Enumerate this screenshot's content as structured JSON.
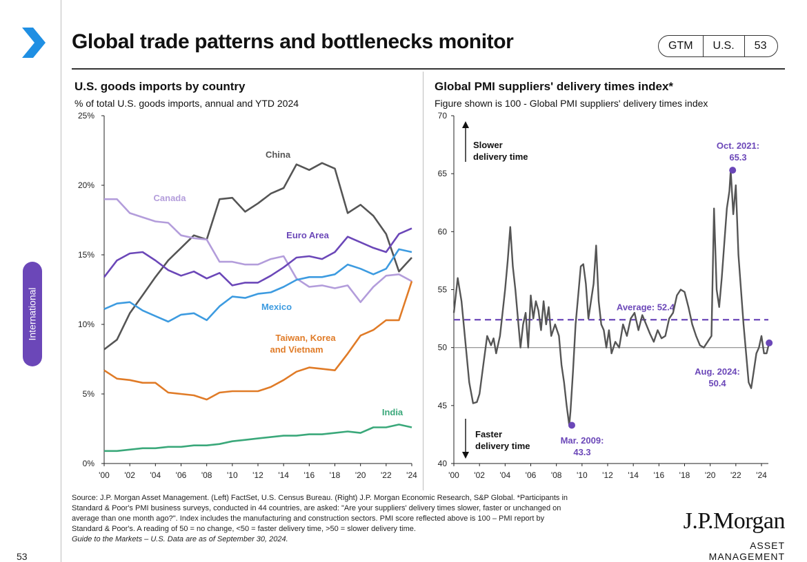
{
  "header": {
    "title": "Global trade patterns and bottlenecks monitor",
    "badges": [
      "GTM",
      "U.S.",
      "53"
    ]
  },
  "side_tab": {
    "label": "International"
  },
  "page_number": "53",
  "colors": {
    "accent": "#1f8fe3",
    "china": "#555555",
    "canada": "#b39ddb",
    "euro_area": "#6b47b8",
    "mexico": "#3d9be0",
    "taiwan_korea_vietnam": "#e07b27",
    "india": "#3aa87a",
    "pmi": "#555555",
    "average": "#6b47b8"
  },
  "chart_data": [
    {
      "type": "line",
      "title": "U.S. goods imports by country",
      "subtitle": "% of total U.S. goods imports, annual and YTD 2024",
      "x": [
        2000,
        2001,
        2002,
        2003,
        2004,
        2005,
        2006,
        2007,
        2008,
        2009,
        2010,
        2011,
        2012,
        2013,
        2014,
        2015,
        2016,
        2017,
        2018,
        2019,
        2020,
        2021,
        2022,
        2023,
        2024
      ],
      "x_ticks": [
        {
          "v": 2000,
          "label": "'00"
        },
        {
          "v": 2002,
          "label": "'02"
        },
        {
          "v": 2004,
          "label": "'04"
        },
        {
          "v": 2006,
          "label": "'06"
        },
        {
          "v": 2008,
          "label": "'08"
        },
        {
          "v": 2010,
          "label": "'10"
        },
        {
          "v": 2012,
          "label": "'12"
        },
        {
          "v": 2014,
          "label": "'14"
        },
        {
          "v": 2016,
          "label": "'16"
        },
        {
          "v": 2018,
          "label": "'18"
        },
        {
          "v": 2020,
          "label": "'20"
        },
        {
          "v": 2022,
          "label": "'22"
        },
        {
          "v": 2024,
          "label": "'24"
        }
      ],
      "y_ticks": [
        {
          "v": 0,
          "label": "0%"
        },
        {
          "v": 5,
          "label": "5%"
        },
        {
          "v": 10,
          "label": "10%"
        },
        {
          "v": 15,
          "label": "15%"
        },
        {
          "v": 20,
          "label": "20%"
        },
        {
          "v": 25,
          "label": "25%"
        }
      ],
      "ylim": [
        0,
        25
      ],
      "grid": false,
      "series": [
        {
          "name": "China",
          "color_key": "china",
          "values": [
            8.2,
            8.9,
            10.8,
            12.1,
            13.4,
            14.6,
            15.5,
            16.4,
            16.1,
            19.0,
            19.1,
            18.1,
            18.7,
            19.4,
            19.8,
            21.5,
            21.1,
            21.6,
            21.2,
            18.0,
            18.6,
            17.8,
            16.5,
            13.8,
            14.8
          ]
        },
        {
          "name": "Canada",
          "color_key": "canada",
          "values": [
            19.0,
            19.0,
            18.0,
            17.7,
            17.4,
            17.3,
            16.4,
            16.2,
            16.1,
            14.5,
            14.5,
            14.3,
            14.3,
            14.7,
            14.9,
            13.3,
            12.7,
            12.8,
            12.6,
            12.8,
            11.6,
            12.7,
            13.5,
            13.6,
            13.1
          ]
        },
        {
          "name": "Euro Area",
          "color_key": "euro_area",
          "values": [
            13.4,
            14.6,
            15.1,
            15.2,
            14.6,
            13.9,
            13.5,
            13.8,
            13.3,
            13.7,
            12.8,
            13.0,
            13.0,
            13.5,
            14.1,
            14.8,
            14.9,
            14.7,
            15.2,
            16.3,
            15.9,
            15.5,
            15.2,
            16.5,
            16.9
          ]
        },
        {
          "name": "Mexico",
          "color_key": "mexico",
          "values": [
            11.1,
            11.5,
            11.6,
            11.0,
            10.6,
            10.2,
            10.7,
            10.8,
            10.3,
            11.3,
            12.0,
            11.9,
            12.2,
            12.3,
            12.7,
            13.2,
            13.4,
            13.4,
            13.6,
            14.3,
            14.0,
            13.6,
            14.0,
            15.4,
            15.2
          ]
        },
        {
          "name": "Taiwan, Korea and Vietnam",
          "color_key": "taiwan_korea_vietnam",
          "values": [
            6.7,
            6.1,
            6.0,
            5.8,
            5.8,
            5.1,
            5.0,
            4.9,
            4.6,
            5.1,
            5.2,
            5.2,
            5.2,
            5.5,
            6.0,
            6.6,
            6.9,
            6.8,
            6.7,
            7.9,
            9.2,
            9.6,
            10.3,
            10.3,
            13.1
          ]
        },
        {
          "name": "India",
          "color_key": "india",
          "values": [
            0.9,
            0.9,
            1.0,
            1.1,
            1.1,
            1.2,
            1.2,
            1.3,
            1.3,
            1.4,
            1.6,
            1.7,
            1.8,
            1.9,
            2.0,
            2.0,
            2.1,
            2.1,
            2.2,
            2.3,
            2.2,
            2.6,
            2.6,
            2.8,
            2.6
          ]
        }
      ],
      "series_labels": [
        "China",
        "Canada",
        "Euro Area",
        "Mexico",
        "Taiwan, Korea",
        "and Vietnam",
        "India"
      ]
    },
    {
      "type": "line",
      "title": "Global PMI suppliers' delivery times index*",
      "subtitle": "Figure shown is 100 - Global PMI suppliers' delivery times index",
      "x_ticks": [
        {
          "v": 2000,
          "label": "'00"
        },
        {
          "v": 2002,
          "label": "'02"
        },
        {
          "v": 2004,
          "label": "'04"
        },
        {
          "v": 2006,
          "label": "'06"
        },
        {
          "v": 2008,
          "label": "'08"
        },
        {
          "v": 2010,
          "label": "'10"
        },
        {
          "v": 2012,
          "label": "'12"
        },
        {
          "v": 2014,
          "label": "'14"
        },
        {
          "v": 2016,
          "label": "'16"
        },
        {
          "v": 2018,
          "label": "'18"
        },
        {
          "v": 2020,
          "label": "'20"
        },
        {
          "v": 2022,
          "label": "'22"
        },
        {
          "v": 2024,
          "label": "'24"
        }
      ],
      "y_ticks": [
        {
          "v": 40,
          "label": "40"
        },
        {
          "v": 45,
          "label": "45"
        },
        {
          "v": 50,
          "label": "50"
        },
        {
          "v": 55,
          "label": "55"
        },
        {
          "v": 60,
          "label": "60"
        },
        {
          "v": 65,
          "label": "65"
        },
        {
          "v": 70,
          "label": "70"
        }
      ],
      "ylim": [
        40,
        70
      ],
      "xlim": [
        2000,
        2024.8
      ],
      "grid": false,
      "reference_line": {
        "value": 50
      },
      "average": {
        "value": 52.4,
        "label": "Average: 52.4"
      },
      "series": [
        {
          "color_key": "pmi",
          "points": [
            [
              2000.0,
              53.0
            ],
            [
              2000.3,
              56.0
            ],
            [
              2000.6,
              54.0
            ],
            [
              2000.9,
              50.5
            ],
            [
              2001.2,
              47.0
            ],
            [
              2001.5,
              45.2
            ],
            [
              2001.8,
              45.3
            ],
            [
              2002.0,
              46.0
            ],
            [
              2002.3,
              48.5
            ],
            [
              2002.6,
              51.0
            ],
            [
              2002.9,
              50.2
            ],
            [
              2003.1,
              50.8
            ],
            [
              2003.3,
              49.5
            ],
            [
              2003.6,
              51.0
            ],
            [
              2003.8,
              53.0
            ],
            [
              2004.0,
              55.0
            ],
            [
              2004.2,
              57.5
            ],
            [
              2004.4,
              60.4
            ],
            [
              2004.6,
              57.0
            ],
            [
              2004.8,
              55.0
            ],
            [
              2005.0,
              52.5
            ],
            [
              2005.2,
              50.0
            ],
            [
              2005.4,
              52.0
            ],
            [
              2005.6,
              53.0
            ],
            [
              2005.8,
              50.0
            ],
            [
              2006.0,
              54.5
            ],
            [
              2006.2,
              52.5
            ],
            [
              2006.4,
              54.0
            ],
            [
              2006.6,
              53.2
            ],
            [
              2006.8,
              51.5
            ],
            [
              2007.0,
              54.0
            ],
            [
              2007.2,
              52.0
            ],
            [
              2007.4,
              53.5
            ],
            [
              2007.6,
              51.0
            ],
            [
              2007.9,
              52.0
            ],
            [
              2008.2,
              51.0
            ],
            [
              2008.4,
              48.5
            ],
            [
              2008.6,
              47.0
            ],
            [
              2008.8,
              45.0
            ],
            [
              2009.0,
              43.3
            ],
            [
              2009.1,
              44.5
            ],
            [
              2009.3,
              48.0
            ],
            [
              2009.5,
              52.0
            ],
            [
              2009.7,
              54.5
            ],
            [
              2009.9,
              57.0
            ],
            [
              2010.1,
              57.2
            ],
            [
              2010.3,
              55.5
            ],
            [
              2010.5,
              52.5
            ],
            [
              2010.7,
              54.0
            ],
            [
              2010.9,
              55.5
            ],
            [
              2011.1,
              58.8
            ],
            [
              2011.3,
              54.0
            ],
            [
              2011.5,
              52.0
            ],
            [
              2011.7,
              51.5
            ],
            [
              2011.9,
              50.0
            ],
            [
              2012.1,
              51.5
            ],
            [
              2012.3,
              49.5
            ],
            [
              2012.6,
              50.5
            ],
            [
              2012.9,
              50.0
            ],
            [
              2013.2,
              52.0
            ],
            [
              2013.5,
              51.0
            ],
            [
              2013.8,
              52.5
            ],
            [
              2014.1,
              53.0
            ],
            [
              2014.4,
              51.5
            ],
            [
              2014.7,
              52.8
            ],
            [
              2015.0,
              52.0
            ],
            [
              2015.3,
              51.2
            ],
            [
              2015.6,
              50.5
            ],
            [
              2015.9,
              51.5
            ],
            [
              2016.2,
              50.8
            ],
            [
              2016.5,
              51.0
            ],
            [
              2016.8,
              52.5
            ],
            [
              2017.1,
              53.0
            ],
            [
              2017.4,
              54.5
            ],
            [
              2017.7,
              55.0
            ],
            [
              2018.0,
              54.8
            ],
            [
              2018.3,
              53.5
            ],
            [
              2018.6,
              52.0
            ],
            [
              2018.9,
              51.0
            ],
            [
              2019.2,
              50.2
            ],
            [
              2019.5,
              50.0
            ],
            [
              2019.8,
              50.5
            ],
            [
              2020.1,
              51.0
            ],
            [
              2020.3,
              62.0
            ],
            [
              2020.5,
              55.0
            ],
            [
              2020.7,
              53.5
            ],
            [
              2020.9,
              56.0
            ],
            [
              2021.1,
              59.0
            ],
            [
              2021.3,
              62.0
            ],
            [
              2021.5,
              63.5
            ],
            [
              2021.6,
              65.3
            ],
            [
              2021.8,
              61.5
            ],
            [
              2022.0,
              64.0
            ],
            [
              2022.2,
              58.0
            ],
            [
              2022.4,
              55.0
            ],
            [
              2022.6,
              52.0
            ],
            [
              2022.8,
              49.5
            ],
            [
              2023.0,
              47.0
            ],
            [
              2023.2,
              46.5
            ],
            [
              2023.4,
              48.0
            ],
            [
              2023.6,
              49.5
            ],
            [
              2023.8,
              50.0
            ],
            [
              2024.0,
              51.0
            ],
            [
              2024.2,
              49.5
            ],
            [
              2024.4,
              49.5
            ],
            [
              2024.6,
              50.4
            ]
          ]
        }
      ],
      "annotations": [
        {
          "lines": [
            "Oct. 2021:",
            "65.3"
          ],
          "x": 2021.75,
          "y": 65.3
        },
        {
          "lines": [
            "Mar. 2009:",
            "43.3"
          ],
          "x": 2009.2,
          "y": 43.3
        },
        {
          "lines": [
            "Aug. 2024:",
            "50.4"
          ],
          "x": 2024.6,
          "y": 50.4
        }
      ],
      "arrow_labels": {
        "slower": [
          "Slower",
          "delivery time"
        ],
        "faster": [
          "Faster",
          "delivery time"
        ]
      }
    }
  ],
  "footer": {
    "source_lines": [
      "Source: J.P. Morgan Asset Management. (Left) FactSet, U.S. Census Bureau. (Right) J.P. Morgan Economic Research, S&P Global. *Participants in",
      "Standard & Poor's PMI business surveys, conducted in 44 countries, are asked: \"Are your suppliers' delivery times slower, faster or unchanged on",
      "average than one month ago?\". Index includes the manufacturing and construction sectors. PMI score reflected above is 100 – PMI report by",
      "Standard & Poor's. A reading of 50 = no change, <50 = faster delivery time, >50 = slower delivery time."
    ],
    "guide": "Guide to the Markets – U.S. Data are as of September 30, 2024."
  },
  "logo": {
    "line1": "J.P.Morgan",
    "line2": "ASSET MANAGEMENT"
  }
}
